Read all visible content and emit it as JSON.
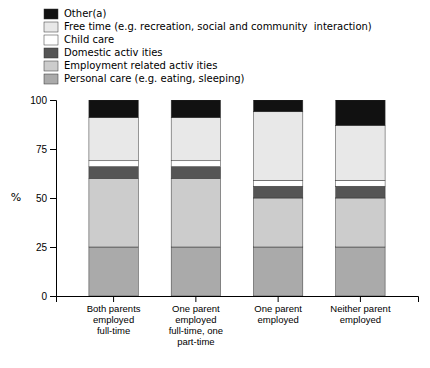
{
  "chart_data": {
    "type": "bar",
    "stacked": true,
    "categories": [
      "Both parents\nemployed\nfull-time",
      "One parent\nemployed\nfull-time, one\npart-time",
      "One parent\nemployed",
      "Neither parent\nemployed"
    ],
    "series": [
      {
        "name": "Personal care (e.g. eating, sleeping)",
        "color": "#aaaaaa",
        "values": [
          25,
          25,
          25,
          25
        ]
      },
      {
        "name": "Employment related activ ities",
        "color": "#cccccc",
        "values": [
          35,
          35,
          25,
          25
        ]
      },
      {
        "name": "Domestic activ ities",
        "color": "#555555",
        "values": [
          6,
          6,
          6,
          6
        ]
      },
      {
        "name": "Child care",
        "color": "#ffffff",
        "values": [
          3,
          3,
          3,
          3
        ]
      },
      {
        "name": "Free time (e.g. recreation, social and community  interaction)",
        "color": "#e8e8e8",
        "values": [
          22,
          22,
          35,
          28
        ]
      },
      {
        "name": "Other(a)",
        "color": "#111111",
        "values": [
          9,
          9,
          6,
          13
        ]
      }
    ],
    "y_label": "%",
    "ylim": [
      0,
      100
    ],
    "yticks": [
      0,
      25,
      50,
      75,
      100
    ],
    "grid": false,
    "legend": "top-left"
  }
}
